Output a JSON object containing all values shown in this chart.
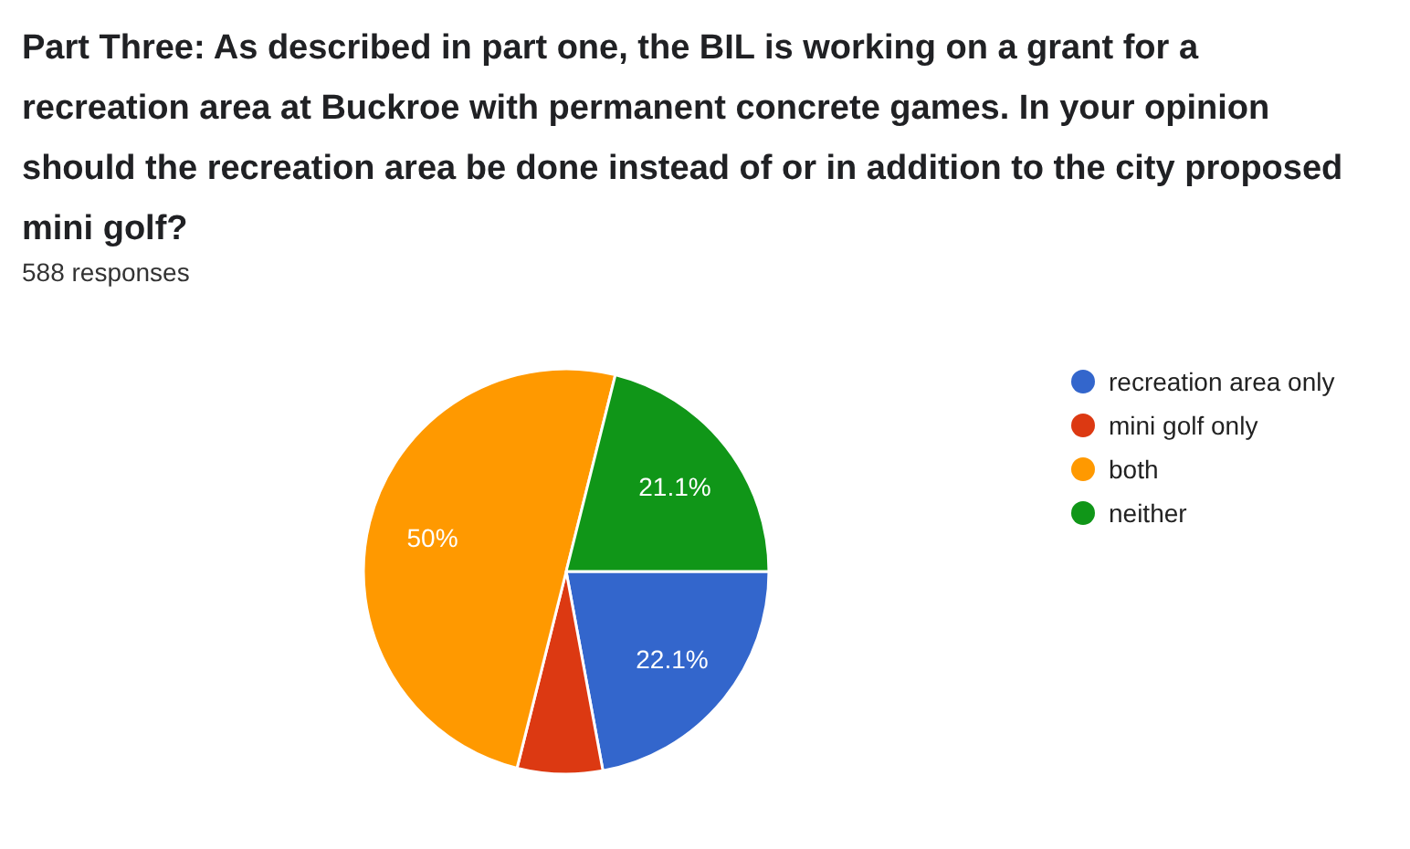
{
  "chart_data": {
    "type": "pie",
    "title": "Part Three: As described in part one, the BIL is working on a grant for a recreation area at Buckroe with permanent concrete games. In your opinion should the recreation area be done instead of or in addition to the city proposed mini golf?",
    "subtitle": "588 responses",
    "categories": [
      "recreation area only",
      "mini golf only",
      "both",
      "neither"
    ],
    "values": [
      22.1,
      6.8,
      50,
      21.1
    ],
    "colors": [
      "#3366cc",
      "#dc3912",
      "#ff9900",
      "#109618"
    ],
    "value_labels": [
      "22.1%",
      null,
      "50%",
      "21.1%"
    ],
    "legend": "right"
  }
}
